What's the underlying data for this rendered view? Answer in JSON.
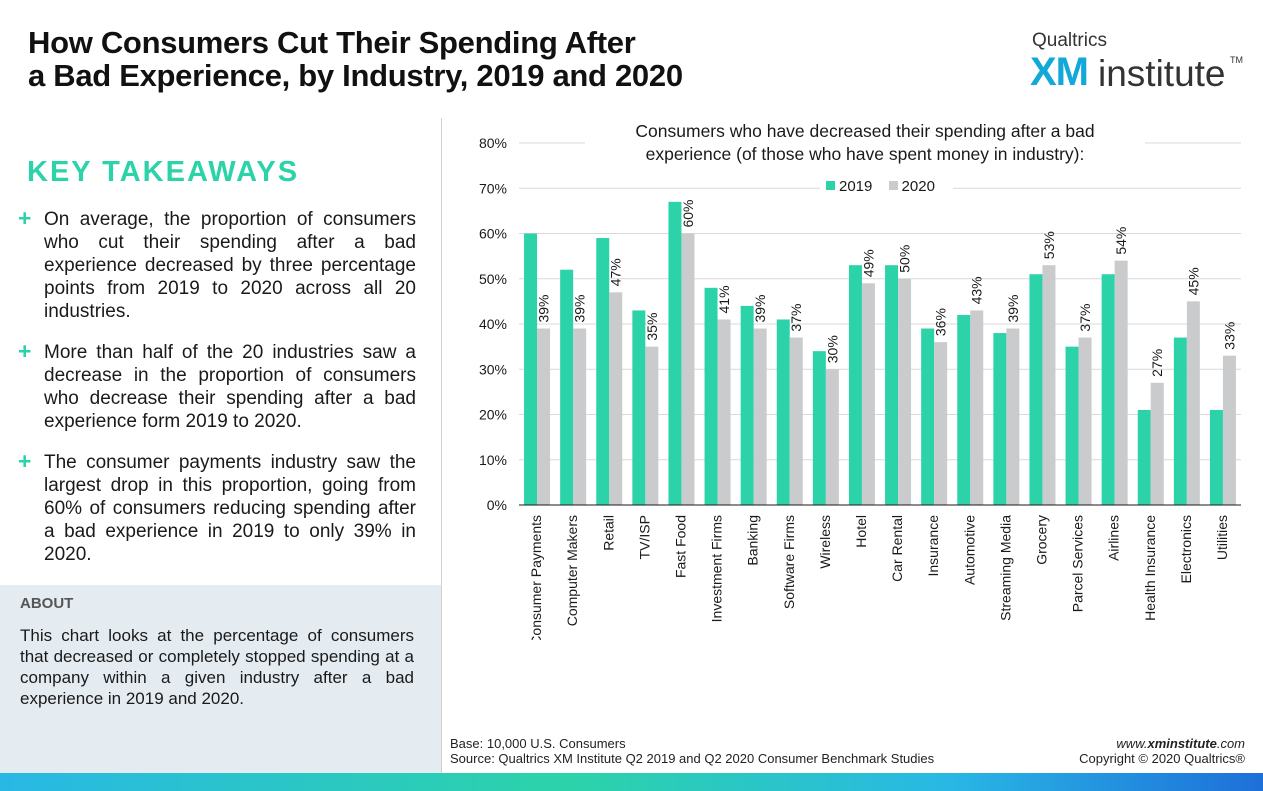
{
  "title": {
    "line1": "How Consumers Cut Their Spending After",
    "line2": "a Bad Experience, by Industry, 2019 and 2020"
  },
  "logo": {
    "top": "Qualtrics",
    "xm": "XM",
    "institute": "institute",
    "tm": "TM"
  },
  "key_takeaways": {
    "heading": "KEY TAKEAWAYS",
    "plus_icon": "+",
    "items": [
      "On average, the proportion of consumers who cut their spending after a bad experience decreased by three percentage points from 2019 to 2020 across all 20 industries.",
      "More than half of the 20 industries saw a decrease in the proportion of consumers who decrease their spending after a bad experience form 2019 to 2020.",
      "The consumer payments industry saw the largest drop in this proportion, going from 60% of consumers reducing spending after a bad experience in 2019 to only 39% in 2020."
    ]
  },
  "about": {
    "heading": "ABOUT",
    "text": "This chart looks at the percentage of consumers that decreased or completely stopped spending at a company within a given industry after a bad experience in 2019 and 2020."
  },
  "footer": {
    "base": "Base: 10,000 U.S. Consumers",
    "source": "Source: Qualtrics XM Institute Q2 2019 and Q2 2020 Consumer Benchmark Studies",
    "site_prefix": "www.",
    "site_bold": "xminstitute",
    "site_suffix": ".com",
    "copyright": "Copyright © 2020 Qualtrics®"
  },
  "colors": {
    "series_2019": "#2cd3a9",
    "series_2020": "#c9cbcd",
    "accent": "#2cd3a9",
    "logo_blue": "#12a8d9"
  },
  "chart_data": {
    "type": "bar",
    "title": "Consumers who have decreased their spending after a bad experience (of those who have spent money in industry):",
    "title_line1": "Consumers who have decreased their spending after a bad",
    "title_line2": "experience (of those who have spent money in industry):",
    "categories": [
      "Consumer Payments",
      "Computer Makers",
      "Retail",
      "TV/ISP",
      "Fast Food",
      "Investment Firms",
      "Banking",
      "Software Firms",
      "Wireless",
      "Hotel",
      "Car Rental",
      "Insurance",
      "Automotive",
      "Streaming Media",
      "Grocery",
      "Parcel Services",
      "Airlines",
      "Health Insurance",
      "Electronics",
      "Utilities"
    ],
    "series": [
      {
        "name": "2019",
        "values": [
          60,
          52,
          59,
          43,
          67,
          48,
          44,
          41,
          34,
          53,
          53,
          39,
          42,
          38,
          51,
          35,
          51,
          21,
          37,
          21
        ]
      },
      {
        "name": "2020",
        "values": [
          39,
          39,
          47,
          35,
          60,
          41,
          39,
          37,
          30,
          49,
          50,
          36,
          43,
          39,
          53,
          37,
          54,
          27,
          45,
          33
        ],
        "data_labels": [
          "39%",
          "39%",
          "47%",
          "35%",
          "60%",
          "41%",
          "39%",
          "37%",
          "30%",
          "49%",
          "50%",
          "36%",
          "43%",
          "39%",
          "53%",
          "37%",
          "54%",
          "27%",
          "45%",
          "33%"
        ]
      }
    ],
    "ylim": [
      0,
      80
    ],
    "yticks": [
      0,
      10,
      20,
      30,
      40,
      50,
      60,
      70,
      80
    ],
    "ytick_labels": [
      "0%",
      "10%",
      "20%",
      "30%",
      "40%",
      "50%",
      "60%",
      "70%",
      "80%"
    ],
    "grid": true,
    "legend_placement": "top-center"
  }
}
